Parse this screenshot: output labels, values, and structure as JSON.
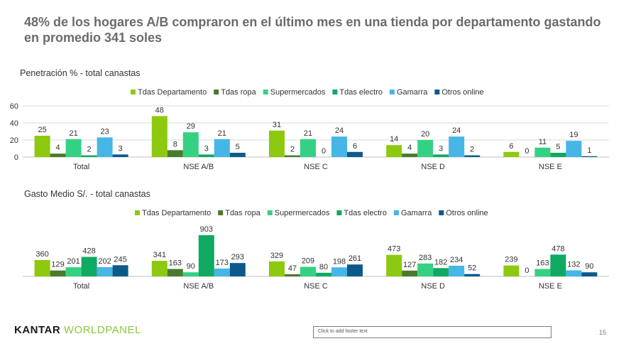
{
  "title": "48% de los hogares A/B compraron en el último mes en una tienda por departamento gastando en promedio 341 soles",
  "footer": {
    "logo_part1": "KANTAR",
    "logo_part2": "WORLDPANEL",
    "footer_placeholder": "Click to add footer text",
    "page_number": "15"
  },
  "colors": {
    "Tdas Departamento": "#8dc90f",
    "Tdas ropa": "#4a7a2c",
    "Supermercados": "#34d183",
    "Tdas electro": "#0faa61",
    "Gamarra": "#45b6e6",
    "Otros online": "#0b5a8a"
  },
  "chart_data": [
    {
      "type": "bar",
      "title": "Penetración % - total canastas",
      "categories": [
        "Total",
        "NSE A/B",
        "NSE C",
        "NSE D",
        "NSE E"
      ],
      "ylim": [
        0,
        60
      ],
      "yticks": [
        "0",
        "20",
        "40",
        "60"
      ],
      "grid": true,
      "legend": "top-right",
      "series": [
        {
          "name": "Tdas Departamento",
          "values": [
            25,
            48,
            31,
            14,
            6
          ]
        },
        {
          "name": "Tdas ropa",
          "values": [
            4,
            8,
            2,
            4,
            0
          ]
        },
        {
          "name": "Supermercados",
          "values": [
            21,
            29,
            21,
            20,
            11
          ]
        },
        {
          "name": "Tdas electro",
          "values": [
            2,
            3,
            0,
            3,
            5
          ]
        },
        {
          "name": "Gamarra",
          "values": [
            23,
            21,
            24,
            24,
            19
          ]
        },
        {
          "name": "Otros online",
          "values": [
            3,
            5,
            6,
            2,
            1
          ]
        }
      ]
    },
    {
      "type": "bar",
      "title": "Gasto Medio S/. - total canastas",
      "categories": [
        "Total",
        "NSE A/B",
        "NSE C",
        "NSE D",
        "NSE E"
      ],
      "ylim": [
        0,
        903
      ],
      "grid": false,
      "legend": "top",
      "series": [
        {
          "name": "Tdas Departamento",
          "values": [
            360,
            341,
            329,
            473,
            239
          ]
        },
        {
          "name": "Tdas ropa",
          "values": [
            129,
            163,
            47,
            127,
            0
          ]
        },
        {
          "name": "Supermercados",
          "values": [
            201,
            90,
            209,
            283,
            163
          ]
        },
        {
          "name": "Tdas electro",
          "values": [
            428,
            903,
            80,
            182,
            478
          ]
        },
        {
          "name": "Gamarra",
          "values": [
            202,
            173,
            198,
            234,
            132
          ]
        },
        {
          "name": "Otros online",
          "values": [
            245,
            293,
            261,
            52,
            90
          ]
        }
      ]
    }
  ]
}
